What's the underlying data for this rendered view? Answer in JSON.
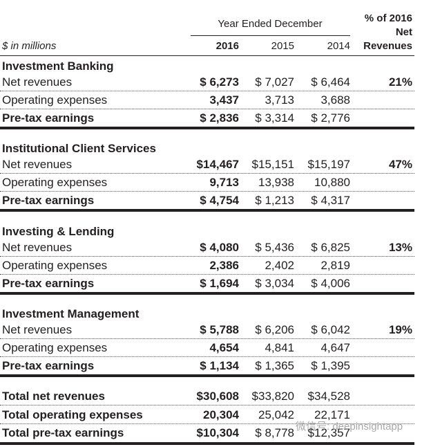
{
  "header": {
    "units": "$ in millions",
    "group": "Year Ended December",
    "years": [
      "2016",
      "2015",
      "2014"
    ],
    "pct_header": [
      "% of 2016",
      "Net",
      "Revenues"
    ]
  },
  "sections": [
    {
      "title": "Investment Banking",
      "rows": [
        {
          "label": "Net revenues",
          "values": [
            "$ 6,273",
            "$ 7,027",
            "$ 6,464"
          ],
          "pct": "21%"
        },
        {
          "label": "Operating expenses",
          "values": [
            "3,437",
            "3,713",
            "3,688"
          ]
        },
        {
          "label": "Pre-tax earnings",
          "values": [
            "$ 2,836",
            "$ 3,314",
            "$ 2,776"
          ]
        }
      ]
    },
    {
      "title": "Institutional Client Services",
      "rows": [
        {
          "label": "Net revenues",
          "values": [
            "$14,467",
            "$15,151",
            "$15,197"
          ],
          "pct": "47%"
        },
        {
          "label": "Operating expenses",
          "values": [
            "9,713",
            "13,938",
            "10,880"
          ]
        },
        {
          "label": "Pre-tax earnings",
          "values": [
            "$ 4,754",
            "$ 1,213",
            "$ 4,317"
          ]
        }
      ]
    },
    {
      "title": "Investing & Lending",
      "rows": [
        {
          "label": "Net revenues",
          "values": [
            "$ 4,080",
            "$ 5,436",
            "$ 6,825"
          ],
          "pct": "13%"
        },
        {
          "label": "Operating expenses",
          "values": [
            "2,386",
            "2,402",
            "2,819"
          ]
        },
        {
          "label": "Pre-tax earnings",
          "values": [
            "$ 1,694",
            "$ 3,034",
            "$ 4,006"
          ]
        }
      ]
    },
    {
      "title": "Investment Management",
      "rows": [
        {
          "label": "Net revenues",
          "values": [
            "$ 5,788",
            "$ 6,206",
            "$ 6,042"
          ],
          "pct": "19%"
        },
        {
          "label": "Operating expenses",
          "values": [
            "4,654",
            "4,841",
            "4,647"
          ]
        },
        {
          "label": "Pre-tax earnings",
          "values": [
            "$ 1,134",
            "$ 1,365",
            "$ 1,395"
          ]
        }
      ]
    }
  ],
  "totals": [
    {
      "label": "Total net revenues",
      "values": [
        "$30,608",
        "$33,820",
        "$34,528"
      ]
    },
    {
      "label": "Total operating expenses",
      "values": [
        "20,304",
        "25,042",
        "22,171"
      ]
    },
    {
      "label": "Total pre-tax earnings",
      "values": [
        "$10,304",
        "$ 8,778",
        "$12,357"
      ]
    }
  ],
  "watermark": "微信号: deepinsightapp"
}
